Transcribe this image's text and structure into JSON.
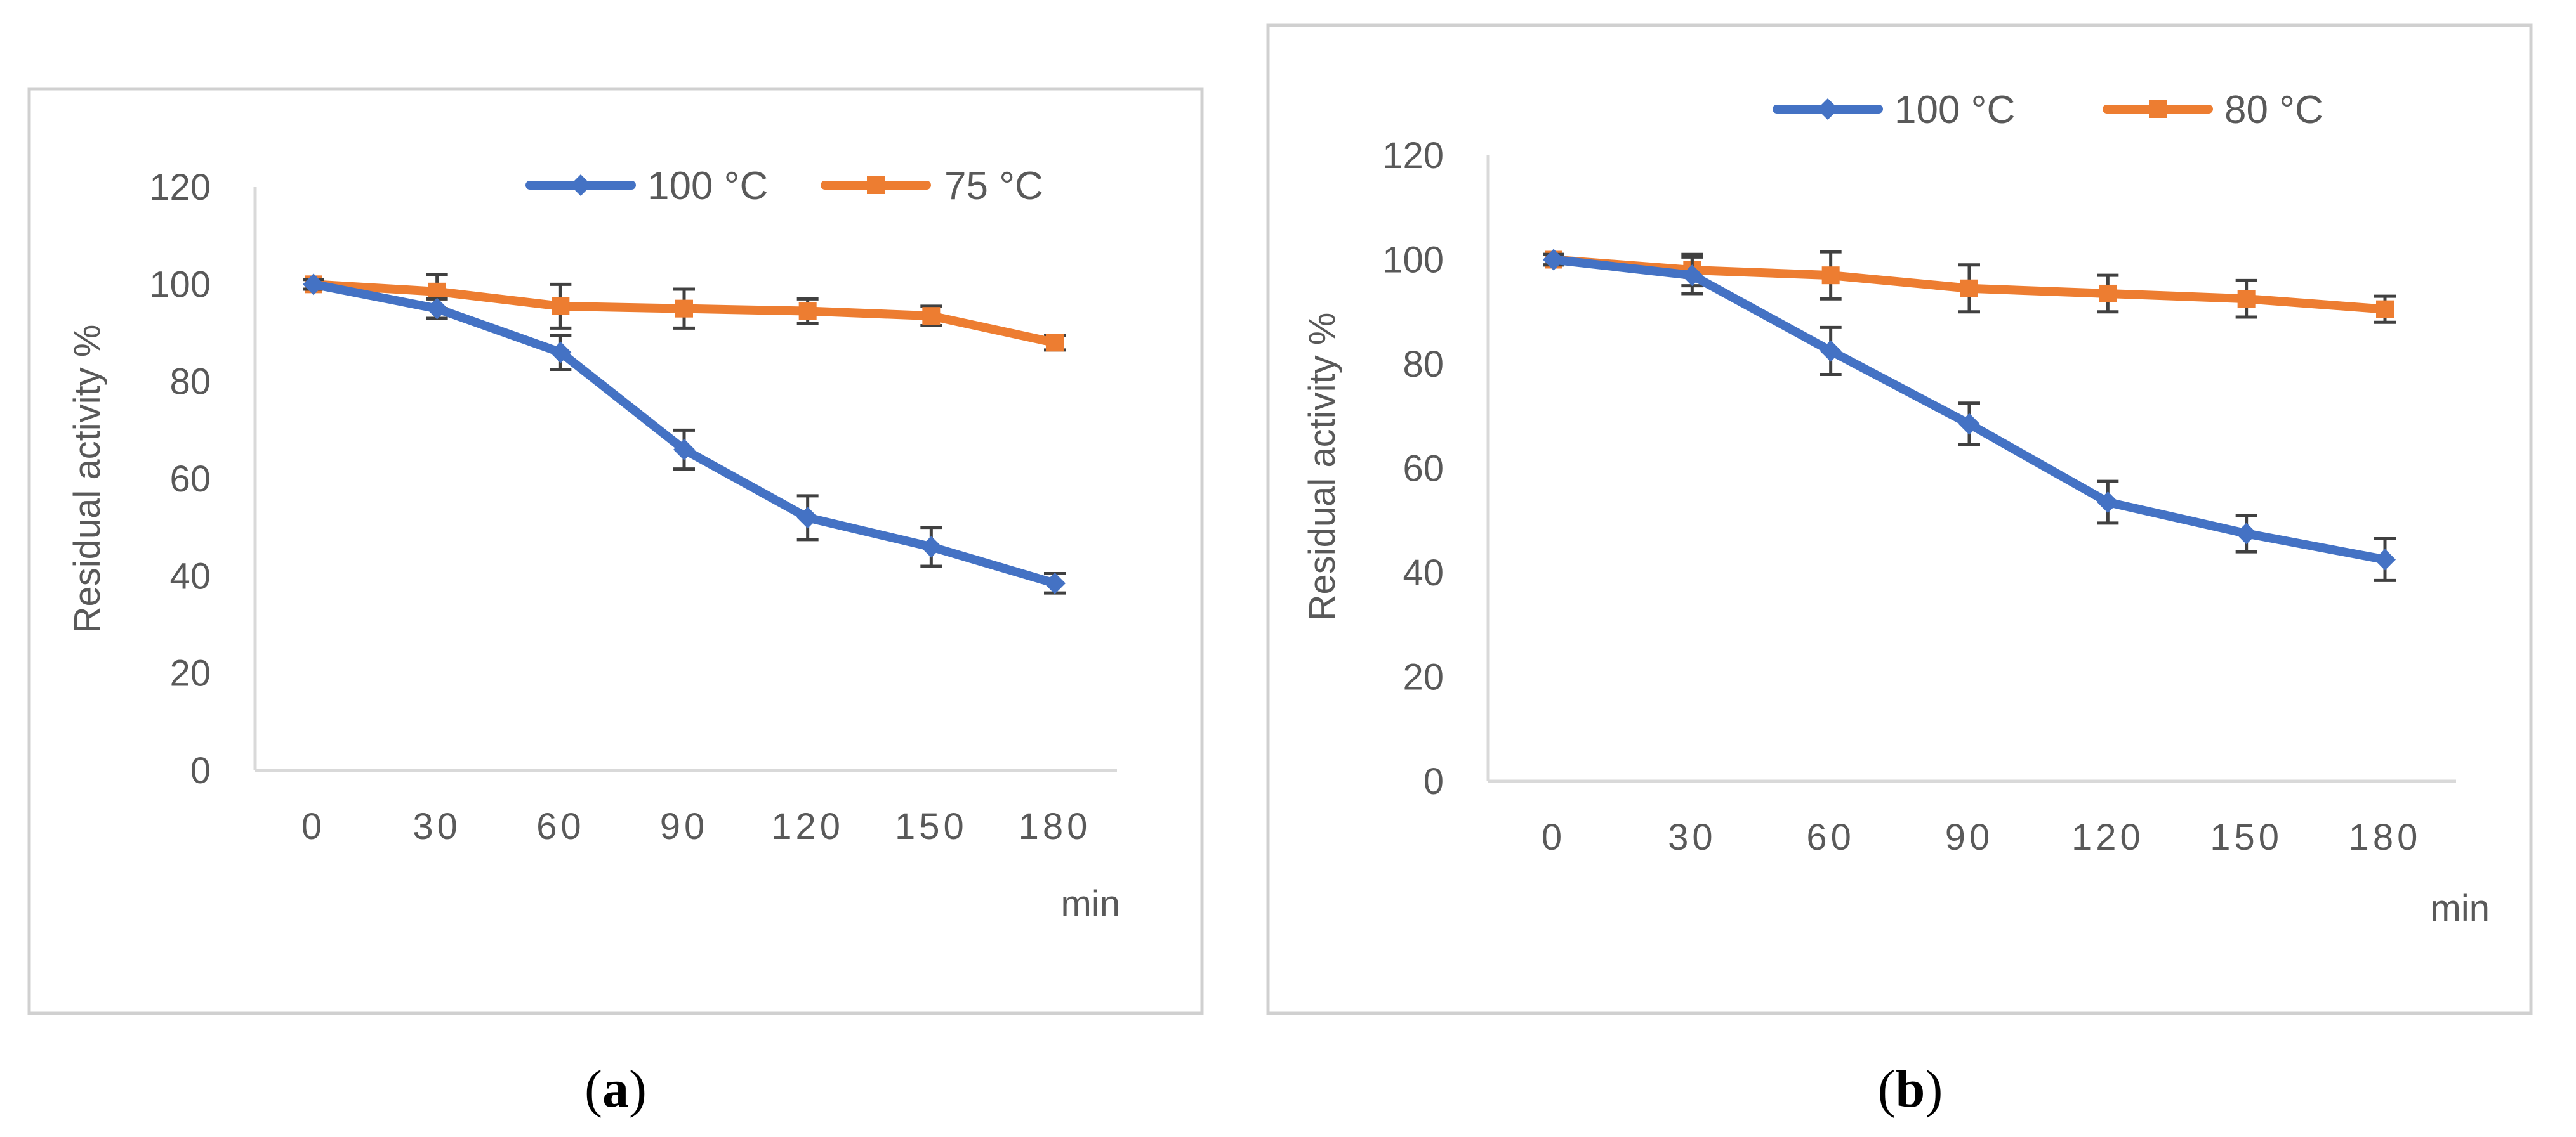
{
  "colors": {
    "series_blue": "#4472C4",
    "series_orange": "#ED7D31",
    "axis": "#D9D9D9",
    "text": "#595959",
    "error_bar": "#404040",
    "frame": "#D0D0D0"
  },
  "chart_data": [
    {
      "id": "a",
      "type": "line",
      "caption": "(a)",
      "caption_letter": "a",
      "categories": [
        "0",
        "30",
        "60",
        "90",
        "120",
        "150",
        "180"
      ],
      "x_unit_label": "min",
      "ylabel": "Residual activity %",
      "ylim": [
        0,
        120
      ],
      "yticks": [
        "0",
        "20",
        "40",
        "60",
        "80",
        "100",
        "120"
      ],
      "grid": false,
      "legend_position": "top-right",
      "series": [
        {
          "name": "100 °C",
          "color": "#4472C4",
          "marker": "diamond",
          "values": [
            100,
            95,
            86,
            66,
            52,
            46,
            38.5
          ],
          "errors": [
            1,
            2,
            3.5,
            4,
            4.5,
            4,
            2
          ]
        },
        {
          "name": "75 °C",
          "color": "#ED7D31",
          "marker": "square",
          "values": [
            100,
            98.5,
            95.5,
            95,
            94.5,
            93.5,
            88
          ],
          "errors": [
            1,
            3.5,
            4.5,
            4,
            2.5,
            2,
            1.5
          ]
        }
      ]
    },
    {
      "id": "b",
      "type": "line",
      "caption": "(b)",
      "caption_letter": "b",
      "categories": [
        "0",
        "30",
        "60",
        "90",
        "120",
        "150",
        "180"
      ],
      "x_unit_label": "min",
      "ylabel": "Residual activity %",
      "ylim": [
        0,
        120
      ],
      "yticks": [
        "0",
        "20",
        "40",
        "60",
        "80",
        "100",
        "120"
      ],
      "grid": false,
      "legend_position": "top-right",
      "series": [
        {
          "name": "100 °C",
          "color": "#4472C4",
          "marker": "diamond",
          "values": [
            100,
            97,
            82.5,
            68.5,
            53.5,
            47.5,
            42.5
          ],
          "errors": [
            1,
            3.5,
            4.5,
            4,
            4,
            3.5,
            4
          ]
        },
        {
          "name": "80 °C",
          "color": "#ED7D31",
          "marker": "square",
          "values": [
            100,
            98,
            97,
            94.5,
            93.5,
            92.5,
            90.5
          ],
          "errors": [
            1,
            3,
            4.5,
            4.5,
            3.5,
            3.5,
            2.5
          ]
        }
      ]
    }
  ]
}
